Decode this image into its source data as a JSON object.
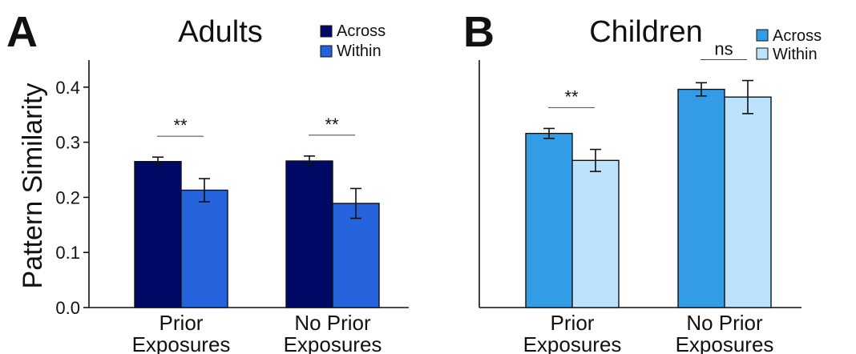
{
  "panels": {
    "A": {
      "letter": "A",
      "title": "Adults"
    },
    "B": {
      "letter": "B",
      "title": "Children"
    }
  },
  "shared_ylabel": "Pattern Similarity",
  "yticks": [
    "0.0",
    "0.1",
    "0.2",
    "0.3",
    "0.4"
  ],
  "chart_data": [
    {
      "type": "bar",
      "title": "Adults",
      "ylabel": "Pattern Similarity",
      "ylim": [
        0,
        0.44
      ],
      "yticks": [
        0.0,
        0.1,
        0.2,
        0.3,
        0.4
      ],
      "categories": [
        [
          "Prior",
          "Exposures"
        ],
        [
          "No Prior",
          "Exposures"
        ]
      ],
      "series": [
        {
          "name": "Across",
          "color": "#000a66",
          "values": [
            0.265,
            0.266
          ],
          "errors": [
            0.008,
            0.009
          ]
        },
        {
          "name": "Within",
          "color": "#2563dc",
          "values": [
            0.213,
            0.189
          ],
          "errors": [
            0.021,
            0.027
          ]
        }
      ],
      "significance": [
        "**",
        "**"
      ],
      "legend": "top-right"
    },
    {
      "type": "bar",
      "title": "Children",
      "ylabel": "",
      "ylim": [
        0,
        0.44
      ],
      "yticks": [],
      "categories": [
        [
          "Prior",
          "Exposures"
        ],
        [
          "No Prior",
          "Exposures"
        ]
      ],
      "series": [
        {
          "name": "Across",
          "color": "#329de6",
          "values": [
            0.316,
            0.396
          ],
          "errors": [
            0.009,
            0.012
          ]
        },
        {
          "name": "Within",
          "color": "#bde3fc",
          "values": [
            0.267,
            0.382
          ],
          "errors": [
            0.02,
            0.03
          ]
        }
      ],
      "significance": [
        "**",
        "ns"
      ],
      "legend": "top-right"
    }
  ]
}
